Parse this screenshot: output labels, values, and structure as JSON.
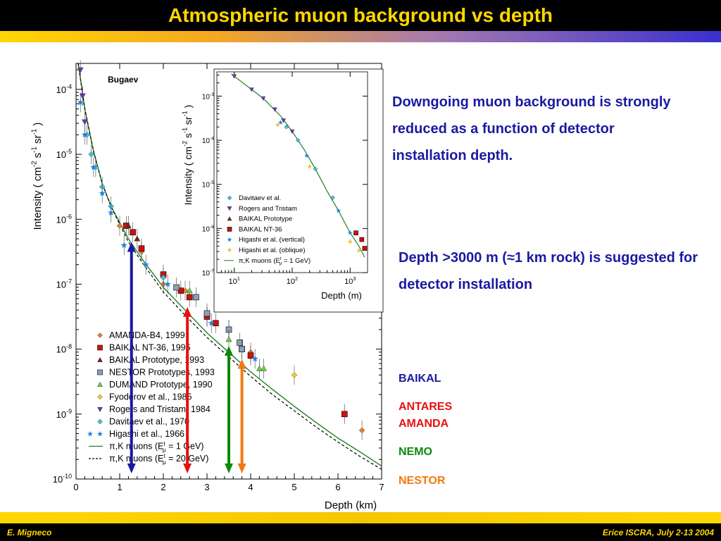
{
  "slide": {
    "title": "Atmospheric muon background vs depth",
    "footer_left": "E. Migneco",
    "footer_right": "Erice ISCRA, July 2-13  2004",
    "paragraphs": [
      "Downgoing muon background is strongly reduced as a function of detector installation depth.",
      "Depth >3000 m (≈1 km rock) is suggested for detector installation"
    ],
    "experiments": [
      {
        "label": "BAIKAL",
        "color": "#1a1aa0"
      },
      {
        "label": "ANTARES",
        "color": "#e81010"
      },
      {
        "label": "AMANDA",
        "color": "#e81010"
      },
      {
        "label": "NEMO",
        "color": "#0a8a0a"
      },
      {
        "label": "NESTOR",
        "color": "#f07a10"
      }
    ]
  },
  "chart_data": [
    {
      "type": "scatter",
      "annotation": "Bugaev",
      "xlabel": "Depth  (km)",
      "ylabel": "Intensity  ( cm⁻² s⁻¹ sr⁻¹ )",
      "xlim": [
        0,
        7
      ],
      "ylim_log10": [
        -10,
        -3.6
      ],
      "xticks": [
        "0",
        "1",
        "2",
        "3",
        "4",
        "5",
        "6",
        "7"
      ],
      "yticks": [
        {
          "exp": -4,
          "label": "10",
          "sup": "-4"
        },
        {
          "exp": -5,
          "label": "10",
          "sup": "-5"
        },
        {
          "exp": -6,
          "label": "10",
          "sup": "-6"
        },
        {
          "exp": -7,
          "label": "10",
          "sup": "-7"
        },
        {
          "exp": -8,
          "label": "10",
          "sup": "-8"
        },
        {
          "exp": -9,
          "label": "10",
          "sup": "-9"
        },
        {
          "exp": -10,
          "label": "10",
          "sup": "-10"
        }
      ],
      "legend": [
        {
          "label": "AMANDA-B4, 1999",
          "marker": "diamond",
          "color": "#e08030"
        },
        {
          "label": "BAIKAL NT-36, 1995",
          "marker": "square",
          "color": "#d01010"
        },
        {
          "label": "BAIKAL Prototype, 1993",
          "marker": "triangle",
          "color": "#802010"
        },
        {
          "label": "NESTOR Prototypes, 1993",
          "marker": "square",
          "color": "#8aa0b8"
        },
        {
          "label": "DUMAND Prototype, 1990",
          "marker": "triangle",
          "color": "#70d040"
        },
        {
          "label": "Fyodorov et al., 1985",
          "marker": "diamond",
          "color": "#f0d020"
        },
        {
          "label": "Rogers and Tristam, 1984",
          "marker": "triangle-down",
          "color": "#7030c0"
        },
        {
          "label": "Davitaev et al., 1970",
          "marker": "diamond",
          "color": "#40c0e0"
        },
        {
          "label": "Higashi et al., 1966",
          "marker": "star",
          "color": "#2080e0"
        },
        {
          "label": "π,K muons (E",
          "sub": "μ",
          "sup": "t",
          "tail": " = 1 GeV)",
          "marker": "line",
          "color": "#208020"
        },
        {
          "label": "π,K muons (E",
          "sub": "μ",
          "sup": "t",
          "tail": " = 20 GeV)",
          "marker": "dashed",
          "color": "#000000"
        }
      ],
      "curves": {
        "x": [
          0.05,
          0.2,
          0.4,
          0.6,
          0.8,
          1.0,
          1.2,
          1.5,
          2.0,
          2.5,
          3.0,
          3.5,
          4.0,
          4.5,
          5.0,
          5.5,
          6.0,
          6.5,
          7.0
        ],
        "solid_log10": [
          -3.6,
          -4.3,
          -4.95,
          -5.45,
          -5.8,
          -6.05,
          -6.3,
          -6.6,
          -7.05,
          -7.4,
          -7.75,
          -8.05,
          -8.35,
          -8.62,
          -8.88,
          -9.13,
          -9.37,
          -9.58,
          -9.8
        ],
        "dashed_log10": [
          -3.6,
          -4.3,
          -4.95,
          -5.45,
          -5.8,
          -6.08,
          -6.35,
          -6.65,
          -7.12,
          -7.48,
          -7.82,
          -8.12,
          -8.42,
          -8.7,
          -8.95,
          -9.2,
          -9.43,
          -9.65,
          -9.85
        ]
      },
      "series": [
        {
          "name": "AMANDA-B4, 1999",
          "points": [
            [
              1.0,
              -6.1
            ],
            [
              1.5,
              -6.5
            ],
            [
              2.0,
              -7.0
            ],
            [
              2.5,
              -7.1
            ],
            [
              3.0,
              -7.5
            ],
            [
              3.5,
              -7.7
            ],
            [
              4.0,
              -8.05
            ],
            [
              6.55,
              -9.25
            ]
          ]
        },
        {
          "name": "BAIKAL NT-36, 1995",
          "points": [
            [
              1.15,
              -6.1
            ],
            [
              1.3,
              -6.2
            ],
            [
              1.5,
              -6.45
            ],
            [
              2.0,
              -6.85
            ],
            [
              2.4,
              -7.1
            ],
            [
              2.6,
              -7.2
            ],
            [
              3.0,
              -7.5
            ],
            [
              3.2,
              -7.6
            ],
            [
              3.8,
              -8.0
            ],
            [
              4.0,
              -8.1
            ],
            [
              6.15,
              -9.0
            ]
          ]
        },
        {
          "name": "BAIKAL Prototype, 1993",
          "points": [
            [
              1.2,
              -6.1
            ],
            [
              1.4,
              -6.3
            ]
          ]
        },
        {
          "name": "NESTOR Prototypes, 1993",
          "points": [
            [
              2.3,
              -7.05
            ],
            [
              2.75,
              -7.2
            ],
            [
              3.0,
              -7.45
            ],
            [
              3.5,
              -7.7
            ],
            [
              3.75,
              -7.9
            ],
            [
              3.8,
              -8.0
            ]
          ]
        },
        {
          "name": "DUMAND Prototype, 1990",
          "points": [
            [
              2.6,
              -7.1
            ],
            [
              3.5,
              -7.85
            ],
            [
              4.2,
              -8.3
            ],
            [
              4.3,
              -8.3
            ]
          ]
        },
        {
          "name": "Fyodorov et al., 1985",
          "points": [
            [
              5.0,
              -8.4
            ]
          ]
        },
        {
          "name": "Rogers and Tristam, 1984",
          "points": [
            [
              0.1,
              -3.7
            ],
            [
              0.15,
              -4.1
            ],
            [
              0.2,
              -4.5
            ]
          ]
        },
        {
          "name": "Davitaev et al., 1970",
          "points": [
            [
              0.25,
              -4.7
            ],
            [
              0.35,
              -5.0
            ],
            [
              0.45,
              -5.2
            ],
            [
              0.6,
              -5.5
            ],
            [
              0.8,
              -5.8
            ],
            [
              2.0,
              -6.9
            ]
          ]
        },
        {
          "name": "Higashi et al., 1966",
          "points": [
            [
              0.1,
              -4.2
            ],
            [
              0.2,
              -4.7
            ],
            [
              0.4,
              -5.2
            ],
            [
              0.6,
              -5.6
            ],
            [
              0.8,
              -5.9
            ],
            [
              1.1,
              -6.4
            ],
            [
              1.6,
              -6.7
            ],
            [
              2.1,
              -7.0
            ],
            [
              3.1,
              -7.6
            ],
            [
              4.1,
              -8.15
            ]
          ]
        }
      ]
    },
    {
      "type": "scatter",
      "xlabel": "Depth  (m)",
      "ylabel": "Intensity  ( cm⁻² s⁻¹ sr⁻¹ )",
      "xlim_log10": [
        0.7,
        3.3
      ],
      "ylim_log10": [
        -7,
        -2.45
      ],
      "xticks": [
        {
          "exp": 1,
          "label": "10",
          "sup": "1"
        },
        {
          "exp": 2,
          "label": "10",
          "sup": "2"
        },
        {
          "exp": 3,
          "label": "10",
          "sup": "3"
        }
      ],
      "yticks": [
        {
          "exp": -3,
          "label": "10",
          "sup": "-3"
        },
        {
          "exp": -4,
          "label": "10",
          "sup": "-4"
        },
        {
          "exp": -5,
          "label": "10",
          "sup": "-5"
        },
        {
          "exp": -6,
          "label": "10",
          "sup": "-6"
        },
        {
          "exp": -7,
          "label": "10",
          "sup": "-7"
        }
      ],
      "legend": [
        {
          "label": "Davitaev et al.",
          "marker": "diamond",
          "color": "#40c0e0"
        },
        {
          "label": "Rogers and Tristam",
          "marker": "triangle-down",
          "color": "#7030c0"
        },
        {
          "label": "BAIKAL Prototype",
          "marker": "triangle",
          "color": "#802010"
        },
        {
          "label": "BAIKAL NT-36",
          "marker": "square",
          "color": "#d01010"
        },
        {
          "label": "Higashi et al. (vertical)",
          "marker": "star",
          "color": "#2080e0"
        },
        {
          "label": "Higashi et al. (oblique)",
          "marker": "star",
          "color": "#f0c020"
        },
        {
          "label": "π,K muons (E",
          "sub": "μ",
          "sup": "t",
          "tail": " = 1 GeV)",
          "marker": "line",
          "color": "#208020"
        }
      ],
      "curves": {
        "x_log10": [
          0.95,
          1.2,
          1.5,
          1.8,
          2.0,
          2.2,
          2.4,
          2.6,
          2.8,
          3.0,
          3.15,
          3.25
        ],
        "y_log10": [
          -2.5,
          -2.75,
          -3.05,
          -3.45,
          -3.8,
          -4.2,
          -4.65,
          -5.15,
          -5.6,
          -6.1,
          -6.4,
          -6.65
        ]
      },
      "series": [
        {
          "name": "Rogers and Tristam",
          "points": [
            [
              1.0,
              -2.55
            ],
            [
              1.3,
              -2.85
            ],
            [
              1.5,
              -3.05
            ],
            [
              1.7,
              -3.3
            ],
            [
              1.85,
              -3.55
            ],
            [
              2.0,
              -3.8
            ]
          ]
        },
        {
          "name": "Davitaev et al.",
          "points": [
            [
              1.9,
              -3.7
            ],
            [
              2.1,
              -4.0
            ],
            [
              2.4,
              -4.65
            ],
            [
              2.7,
              -5.3
            ]
          ]
        },
        {
          "name": "BAIKAL NT-36",
          "points": [
            [
              3.1,
              -6.1
            ],
            [
              3.2,
              -6.25
            ],
            [
              3.25,
              -6.45
            ]
          ]
        },
        {
          "name": "Higashi et al. (vertical)",
          "points": [
            [
              1.8,
              -3.6
            ],
            [
              2.25,
              -4.35
            ],
            [
              2.8,
              -5.6
            ],
            [
              3.0,
              -6.1
            ]
          ]
        },
        {
          "name": "Higashi et al. (oblique)",
          "points": [
            [
              1.75,
              -3.65
            ],
            [
              2.3,
              -4.6
            ],
            [
              3.0,
              -6.3
            ],
            [
              3.15,
              -6.5
            ]
          ]
        }
      ]
    }
  ]
}
